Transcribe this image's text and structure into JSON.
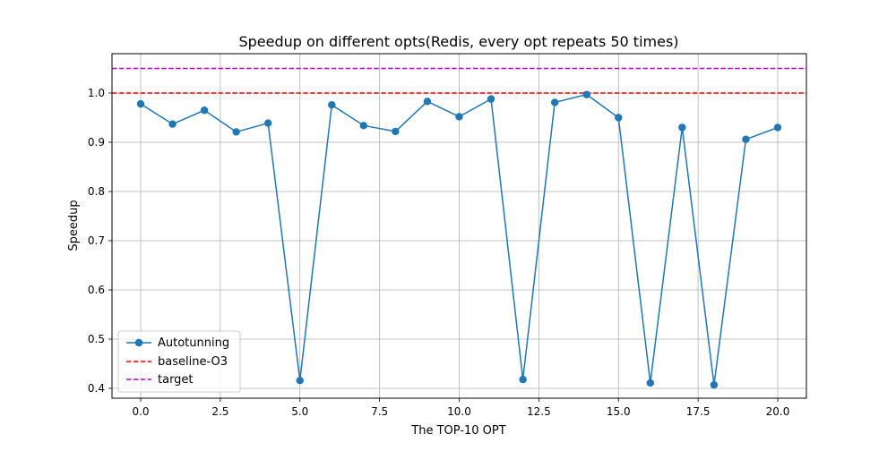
{
  "chart_data": {
    "type": "line",
    "title": "Speedup on different opts(Redis, every opt repeats 50 times)",
    "xlabel": "The TOP-10 OPT",
    "ylabel": "Speedup",
    "xlim": [
      -0.9,
      20.9
    ],
    "ylim": [
      0.38,
      1.08
    ],
    "xticks": [
      0.0,
      2.5,
      5.0,
      7.5,
      10.0,
      12.5,
      15.0,
      17.5,
      20.0
    ],
    "xtick_labels": [
      "0.0",
      "2.5",
      "5.0",
      "7.5",
      "10.0",
      "12.5",
      "15.0",
      "17.5",
      "20.0"
    ],
    "yticks": [
      0.4,
      0.5,
      0.6,
      0.7,
      0.8,
      0.9,
      1.0
    ],
    "ytick_labels": [
      "0.4",
      "0.5",
      "0.6",
      "0.7",
      "0.8",
      "0.9",
      "1.0"
    ],
    "grid": true,
    "legend_position": "lower-left",
    "series": [
      {
        "name": "Autotunning",
        "kind": "line-marker",
        "color": "#1f77b4",
        "x": [
          0,
          1,
          2,
          3,
          4,
          5,
          6,
          7,
          8,
          9,
          10,
          11,
          12,
          13,
          14,
          15,
          16,
          17,
          18,
          19,
          20
        ],
        "values": [
          0.978,
          0.937,
          0.965,
          0.921,
          0.939,
          0.416,
          0.976,
          0.934,
          0.922,
          0.983,
          0.952,
          0.988,
          0.418,
          0.981,
          0.997,
          0.95,
          0.411,
          0.93,
          0.407,
          0.906,
          0.93
        ]
      }
    ],
    "reference_lines": [
      {
        "name": "baseline-O3",
        "y": 1.0,
        "color": "#ff0000",
        "style": "dashed"
      },
      {
        "name": "target",
        "y": 1.05,
        "color": "#bf00bf",
        "style": "dashed"
      }
    ]
  }
}
